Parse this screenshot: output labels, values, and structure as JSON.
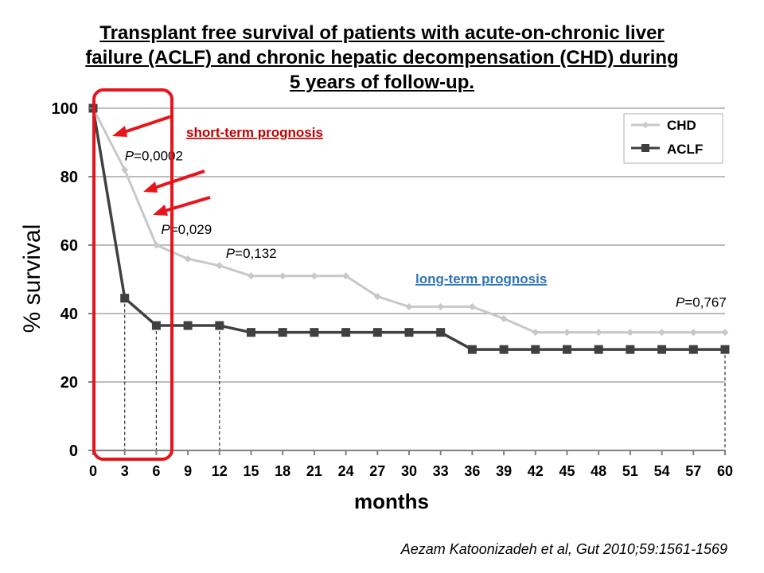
{
  "title_lines": [
    "Transplant free survival of patients with acute-on-chronic liver",
    "failure (ACLF) and chronic hepatic decompensation (CHD) during",
    "5 years of follow-up."
  ],
  "annotations": {
    "short_term": "short-term prognosis",
    "long_term": "long-term prognosis",
    "short_term_color": "#c00000",
    "long_term_color": "#2e75b6",
    "highlight_color": "#e8141c",
    "arrow_color": "#e8141c"
  },
  "citation": "Aezam Katoonizadeh et al, Gut 2010;59:1561-1569",
  "chart_data": {
    "type": "line",
    "xlabel": "months",
    "ylabel": "% survival",
    "xlim": [
      0,
      60
    ],
    "ylim": [
      0,
      100
    ],
    "x_ticks": [
      0,
      3,
      6,
      9,
      12,
      15,
      18,
      21,
      24,
      27,
      30,
      33,
      36,
      39,
      42,
      45,
      48,
      51,
      54,
      57,
      60
    ],
    "y_ticks": [
      0,
      20,
      40,
      60,
      80,
      100
    ],
    "grid": "horizontal",
    "legend_position": "top-right",
    "series": [
      {
        "name": "CHD",
        "color": "#c8c8c8",
        "marker": "diamond",
        "x": [
          0,
          3,
          6,
          9,
          12,
          15,
          18,
          21,
          24,
          27,
          30,
          33,
          36,
          39,
          42,
          45,
          48,
          51,
          54,
          57,
          60
        ],
        "values": [
          100,
          82,
          60,
          56,
          54,
          51,
          51,
          51,
          51,
          45,
          42,
          42,
          42,
          38.5,
          34.5,
          34.5,
          34.5,
          34.5,
          34.5,
          34.5,
          34.5
        ]
      },
      {
        "name": "ACLF",
        "color": "#404040",
        "marker": "square",
        "x": [
          0,
          3,
          6,
          9,
          12,
          15,
          18,
          21,
          24,
          27,
          30,
          33,
          36,
          39,
          42,
          45,
          48,
          51,
          54,
          57,
          60
        ],
        "values": [
          100,
          44.5,
          36.5,
          36.5,
          36.5,
          34.5,
          34.5,
          34.5,
          34.5,
          34.5,
          34.5,
          34.5,
          29.5,
          29.5,
          29.5,
          29.5,
          29.5,
          29.5,
          29.5,
          29.5,
          29.5
        ]
      }
    ],
    "p_values": [
      {
        "x": 3,
        "label": "P",
        "value": "=0,0002"
      },
      {
        "x": 6,
        "label": "P",
        "value": "=0,029"
      },
      {
        "x": 12,
        "label": "P",
        "value": "=0,132"
      },
      {
        "x": 60,
        "label": "P",
        "value": "=0,767"
      }
    ]
  }
}
